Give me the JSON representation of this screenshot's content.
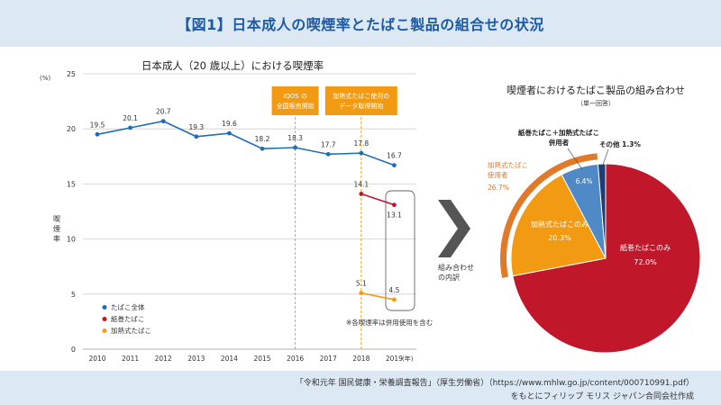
{
  "header": {
    "title": "【図1】日本成人の喫煙率とたばこ製品の組合せの状況"
  },
  "footer": {
    "source_line": "「令和元年 国民健康・栄養調査報告」（厚生労働省）（https://www.mhlw.go.jp/content/000710991.pdf）",
    "credit_line": "をもとにフィリップ モリス ジャパン合同会社作成"
  },
  "colors": {
    "total": "#1f6db5",
    "cigarette": "#c0182a",
    "heated": "#f29a12",
    "both": "#4f8ac6",
    "other": "#1f3d73",
    "outer_ring": "#e07a2a"
  },
  "chart_data": [
    {
      "type": "line",
      "title": "日本成人（20 歳以上）における喫煙率",
      "ylabel": "喫煙率",
      "unit_label": "(%)",
      "year_unit": "(年)",
      "ylim": [
        0,
        25
      ],
      "yticks": [
        0,
        5,
        10,
        15,
        20,
        25
      ],
      "x": [
        "2010",
        "2011",
        "2012",
        "2013",
        "2014",
        "2015",
        "2016",
        "2017",
        "2018",
        "2019"
      ],
      "grid": true,
      "series": [
        {
          "name": "たばこ全体",
          "color_key": "total",
          "x": [
            "2010",
            "2011",
            "2012",
            "2013",
            "2014",
            "2015",
            "2016",
            "2017",
            "2018",
            "2019"
          ],
          "values": [
            19.5,
            20.1,
            20.7,
            19.3,
            19.6,
            18.2,
            18.3,
            17.7,
            17.8,
            16.7
          ],
          "labels": [
            "19.5",
            "20.1",
            "20.7",
            "19.3",
            "19.6",
            "18.2",
            "18.3",
            "17.7",
            "17.8",
            "16.7"
          ]
        },
        {
          "name": "紙巻たばこ",
          "color_key": "cigarette",
          "x": [
            "2018",
            "2019"
          ],
          "values": [
            14.1,
            13.1
          ],
          "labels": [
            "14.1",
            "13.1"
          ]
        },
        {
          "name": "加熱式たばこ",
          "color_key": "heated",
          "x": [
            "2018",
            "2019"
          ],
          "values": [
            5.1,
            4.5
          ],
          "labels": [
            "5.1",
            "4.5"
          ]
        }
      ],
      "legend_position": "bottom-left",
      "annotations": [
        {
          "x": "2016",
          "lines": [
            "IQOS の",
            "全国販売開始"
          ]
        },
        {
          "x": "2018",
          "lines": [
            "加熱式たばこ使用の",
            "データ取得開始"
          ]
        }
      ],
      "note": "※各喫煙率は併用使用を含む",
      "arrow_label": [
        "組み合わせ",
        "の内訳"
      ]
    },
    {
      "type": "pie",
      "title": "喫煙者におけるたばこ製品の組み合わせ",
      "subtitle": "（単一回答）",
      "slices": [
        {
          "label": "紙巻たばこのみ",
          "value": 72.0,
          "value_label": "72.0%",
          "color_key": "cigarette"
        },
        {
          "label": "加熱式たばこのみ",
          "value": 20.3,
          "value_label": "20.3%",
          "color_key": "heated"
        },
        {
          "label": "紙巻たばこ＋加熱式たばこ併用者",
          "label_lines": [
            "紙巻たばこ＋加熱式たばこ",
            "併用者"
          ],
          "value": 6.4,
          "value_label": "6.4%",
          "color_key": "both"
        },
        {
          "label": "その他",
          "value": 1.3,
          "value_label": "その他 1.3%",
          "color_key": "other"
        }
      ],
      "ring": {
        "label_lines": [
          "加熱式たばこ",
          "使用者"
        ],
        "value": 26.7,
        "value_label": "26.7%",
        "color_key": "outer_ring"
      }
    }
  ]
}
